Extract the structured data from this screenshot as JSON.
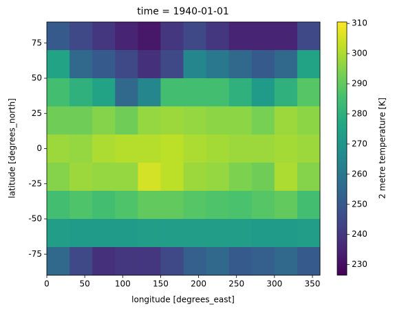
{
  "chart_data": {
    "type": "heatmap",
    "title": "time = 1940-01-01",
    "x_label": "longitude [degrees_east]",
    "y_label": "latitude [degrees_north]",
    "colorbar_label": "2 metre temperature [K]",
    "x": [
      15,
      45,
      75,
      105,
      135,
      165,
      195,
      225,
      255,
      285,
      315,
      345
    ],
    "y": [
      80,
      60,
      40,
      20,
      0,
      -20,
      -40,
      -60,
      -80
    ],
    "values": [
      [
        250,
        245,
        240,
        235,
        232,
        240,
        245,
        240,
        235,
        235,
        235,
        245
      ],
      [
        275,
        255,
        250,
        245,
        238,
        245,
        265,
        260,
        255,
        250,
        255,
        275
      ],
      [
        285,
        280,
        275,
        255,
        265,
        285,
        285,
        285,
        280,
        272,
        280,
        288
      ],
      [
        292,
        292,
        295,
        292,
        297,
        298,
        297,
        296,
        296,
        293,
        298,
        296
      ],
      [
        298,
        297,
        300,
        301,
        301,
        302,
        300,
        299,
        298,
        298,
        299,
        298
      ],
      [
        295,
        298,
        297,
        297,
        305,
        302,
        298,
        297,
        294,
        292,
        300,
        295
      ],
      [
        285,
        287,
        285,
        287,
        290,
        290,
        288,
        287,
        286,
        288,
        290,
        285
      ],
      [
        273,
        272,
        272,
        272,
        273,
        273,
        273,
        273,
        273,
        272,
        272,
        273
      ],
      [
        255,
        245,
        238,
        240,
        240,
        245,
        252,
        255,
        250,
        252,
        255,
        250
      ]
    ],
    "colormap": "viridis",
    "xlim": [
      0,
      360
    ],
    "xticks": [
      0,
      50,
      100,
      150,
      200,
      250,
      300,
      350
    ],
    "ylim": [
      -90,
      90
    ],
    "yticks": [
      -75,
      -50,
      -25,
      0,
      25,
      50,
      75
    ],
    "clim": [
      226.5,
      310.5
    ],
    "cticks": [
      230,
      240,
      250,
      260,
      270,
      280,
      290,
      300,
      310
    ]
  }
}
